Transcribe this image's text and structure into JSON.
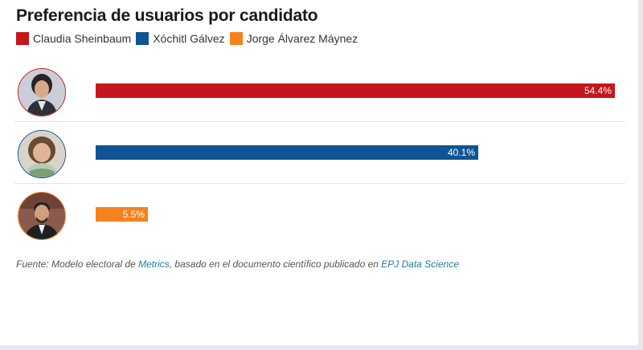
{
  "title": "Preferencia de usuarios por candidato",
  "legend": [
    {
      "label": "Claudia Sheinbaum",
      "color": "#c4161c"
    },
    {
      "label": "Xóchitl Gálvez",
      "color": "#0f5494"
    },
    {
      "label": "Jorge Álvarez Máynez",
      "color": "#f5821f"
    }
  ],
  "chart_data": {
    "type": "bar",
    "orientation": "horizontal",
    "categories": [
      "Claudia Sheinbaum",
      "Xóchitl Gálvez",
      "Jorge Álvarez Máynez"
    ],
    "values": [
      54.4,
      40.1,
      5.5
    ],
    "value_labels": [
      "54.4%",
      "40.1%",
      "5.5%"
    ],
    "colors": [
      "#c4161c",
      "#0f5494",
      "#f5821f"
    ],
    "xlim": [
      0,
      54.4
    ],
    "legend_position": "top-left",
    "grid": false
  },
  "source": {
    "prefix": "Fuente: Modelo electoral de ",
    "link1": "Metrics",
    "middle": ", basado en el documento científico publicado en ",
    "link2": "EPJ Data Science"
  }
}
